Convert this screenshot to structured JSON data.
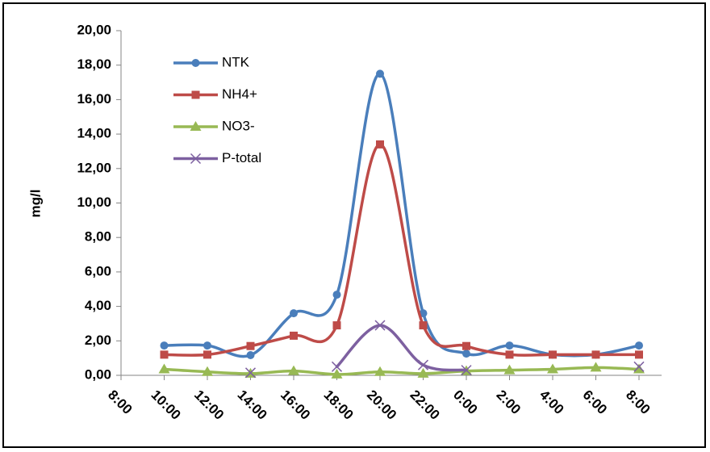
{
  "chart_data": {
    "type": "line",
    "smooth": true,
    "y_label": "mg/l",
    "categories": [
      "8:00",
      "10:00",
      "12:00",
      "14:00",
      "16:00",
      "18:00",
      "20:00",
      "22:00",
      "0:00",
      "2:00",
      "4:00",
      "6:00",
      "8:00"
    ],
    "series": [
      {
        "name": "NTK",
        "color": "#4a7ebb",
        "marker": "circle",
        "values": [
          null,
          1.73,
          1.73,
          1.17,
          3.6,
          4.68,
          17.5,
          3.6,
          1.26,
          1.73,
          1.2,
          1.2,
          1.73
        ]
      },
      {
        "name": "NH4+",
        "color": "#be4b48",
        "marker": "square",
        "values": [
          null,
          1.2,
          1.2,
          1.7,
          2.3,
          2.9,
          13.4,
          2.9,
          1.7,
          1.2,
          1.2,
          1.2,
          1.2
        ]
      },
      {
        "name": "NO3-",
        "color": "#98b954",
        "marker": "triangle",
        "values": [
          null,
          0.35,
          0.2,
          0.1,
          0.25,
          0.05,
          0.2,
          0.1,
          0.25,
          0.3,
          0.35,
          0.45,
          0.35
        ]
      },
      {
        "name": "P-total",
        "color": "#7d60a0",
        "marker": "x",
        "values": [
          null,
          null,
          null,
          0.15,
          null,
          0.5,
          2.9,
          0.6,
          0.3,
          null,
          null,
          null,
          0.5
        ]
      }
    ],
    "ylim": [
      0,
      20
    ],
    "yticks": [
      {
        "value": 0,
        "label": "0,00"
      },
      {
        "value": 2,
        "label": "2,00"
      },
      {
        "value": 4,
        "label": "4,00"
      },
      {
        "value": 6,
        "label": "6,00"
      },
      {
        "value": 8,
        "label": "8,00"
      },
      {
        "value": 10,
        "label": "10,00"
      },
      {
        "value": 12,
        "label": "12,00"
      },
      {
        "value": 14,
        "label": "14,00"
      },
      {
        "value": 16,
        "label": "16,00"
      },
      {
        "value": 18,
        "label": "18,00"
      },
      {
        "value": 20,
        "label": "20,00"
      }
    ],
    "grid": false,
    "legend": "upper left"
  }
}
